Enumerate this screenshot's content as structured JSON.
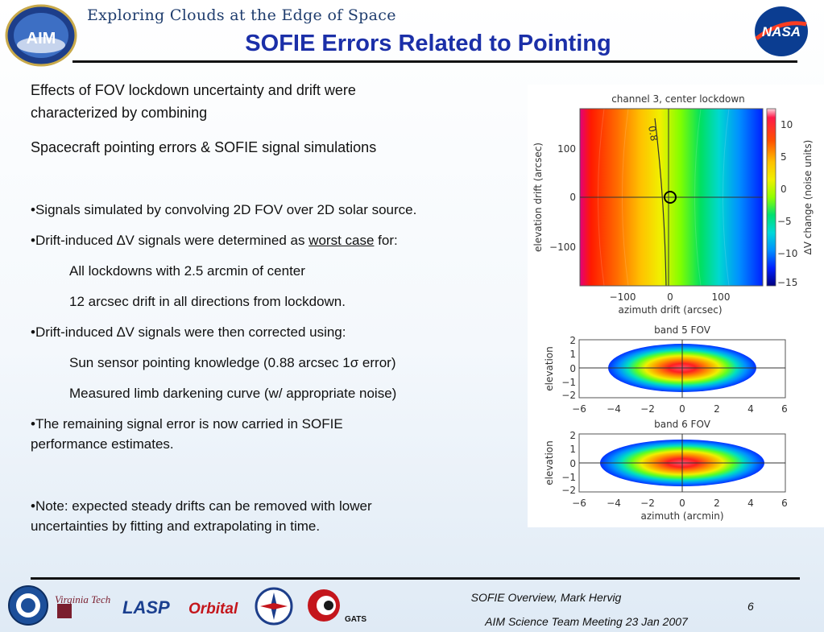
{
  "header": {
    "tagline": "Exploring Clouds at the Edge of Space",
    "title": "SOFIE Errors Related to Pointing",
    "left_logo_text": "AIM",
    "right_logo_text": "NASA"
  },
  "body": {
    "intro_line1": "Effects of FOV lockdown uncertainty and drift were",
    "intro_line2": "characterized by combining",
    "intro_line3": "Spacecraft pointing errors &  SOFIE signal simulations",
    "b1": "•Signals simulated by convolving 2D FOV over 2D solar source.",
    "b2_pre": "•Drift-induced ∆V signals were determined as ",
    "b2_u": "worst case",
    "b2_post": " for:",
    "b2_s1": "All lockdowns with 2.5 arcmin of center",
    "b2_s2": "12 arcsec drift in all directions from lockdown.",
    "b3": "•Drift-induced ∆V signals were then corrected using:",
    "b3_s1": "Sun sensor pointing knowledge (0.88 arcsec 1σ error)",
    "b3_s2": "Measured limb darkening curve (w/ appropriate noise)",
    "b4_line1": "•The remaining signal error is now carried in SOFIE",
    "b4_line2": "performance estimates.",
    "b5_line1": "•Note: expected steady drifts can be removed with lower",
    "b5_line2": "uncertainties by fitting and extrapolating in time."
  },
  "figures": {
    "top": {
      "title": "channel  3, center lockdown",
      "xlabel": "azimuth drift (arcsec)",
      "ylabel": "elevation drift (arcsec)",
      "x_ticks": [
        "−100",
        "0",
        "100"
      ],
      "y_ticks": [
        "100",
        "0",
        "−100"
      ],
      "contour_label": "0.8",
      "colorbar_label": "∆V change (noise units)",
      "colorbar_ticks": [
        "10",
        "5",
        "0",
        "−5",
        "−10",
        "−15"
      ]
    },
    "band5": {
      "title": "band  5 FOV",
      "ylabel": "elevation",
      "y_ticks": [
        "2",
        "1",
        "0",
        "−1",
        "−2"
      ],
      "x_ticks": [
        "−6",
        "−4",
        "−2",
        "0",
        "2",
        "4",
        "6"
      ]
    },
    "band6": {
      "title": "band  6 FOV",
      "ylabel": "elevation",
      "xlabel": "azimuth (arcmin)",
      "y_ticks": [
        "2",
        "1",
        "0",
        "−1",
        "−2"
      ],
      "x_ticks": [
        "−6",
        "−4",
        "−2",
        "0",
        "2",
        "4",
        "6"
      ]
    }
  },
  "footer": {
    "line1": "SOFIE Overview, Mark Hervig",
    "line2": "AIM Science Team Meeting 23 Jan 2007",
    "page": "6",
    "logos": [
      "Virginia Tech",
      "LASP",
      "Orbital",
      "GATS"
    ]
  }
}
